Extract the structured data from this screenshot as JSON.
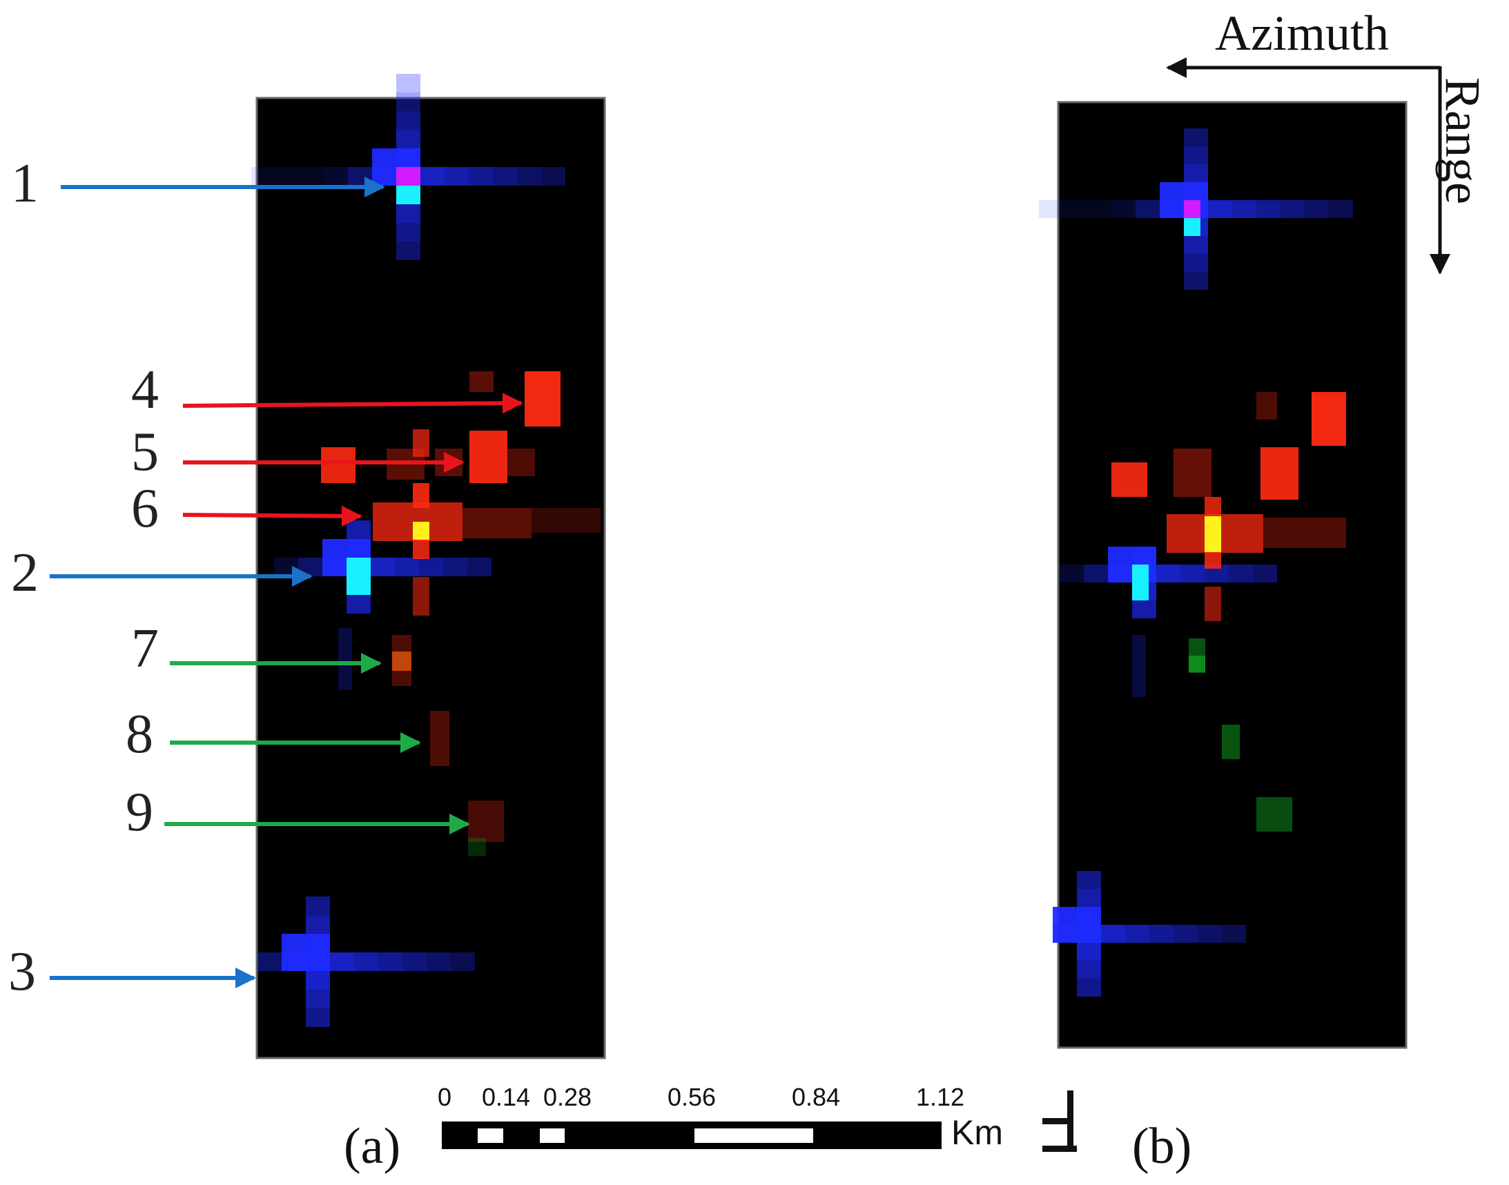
{
  "figure": {
    "panel_a_label": "(a)",
    "panel_b_label": "(b)",
    "azimuth_label": "Azimuth",
    "range_label": "Range"
  },
  "annotations": [
    {
      "id": "1",
      "label": "1",
      "color": "#1a73c9"
    },
    {
      "id": "2",
      "label": "2",
      "color": "#1a73c9"
    },
    {
      "id": "3",
      "label": "3",
      "color": "#1a73c9"
    },
    {
      "id": "4",
      "label": "4",
      "color": "#e8141c"
    },
    {
      "id": "5",
      "label": "5",
      "color": "#e8141c"
    },
    {
      "id": "6",
      "label": "6",
      "color": "#e8141c"
    },
    {
      "id": "7",
      "label": "7",
      "color": "#1faa4a"
    },
    {
      "id": "8",
      "label": "8",
      "color": "#1faa4a"
    },
    {
      "id": "9",
      "label": "9",
      "color": "#1faa4a"
    }
  ],
  "scale_bar": {
    "ticks": [
      "0",
      "0.14",
      "0.28",
      "0.56",
      "0.84",
      "1.12"
    ],
    "unit": "Km"
  },
  "colors": {
    "background": "#000000",
    "blue_target": "#1f2bff",
    "red_target": "#ff2a12",
    "green_target": "#0f8a1c",
    "highlight_cyan": "#19f0ff",
    "highlight_magenta": "#d01cff",
    "highlight_yellow": "#fff21a"
  }
}
